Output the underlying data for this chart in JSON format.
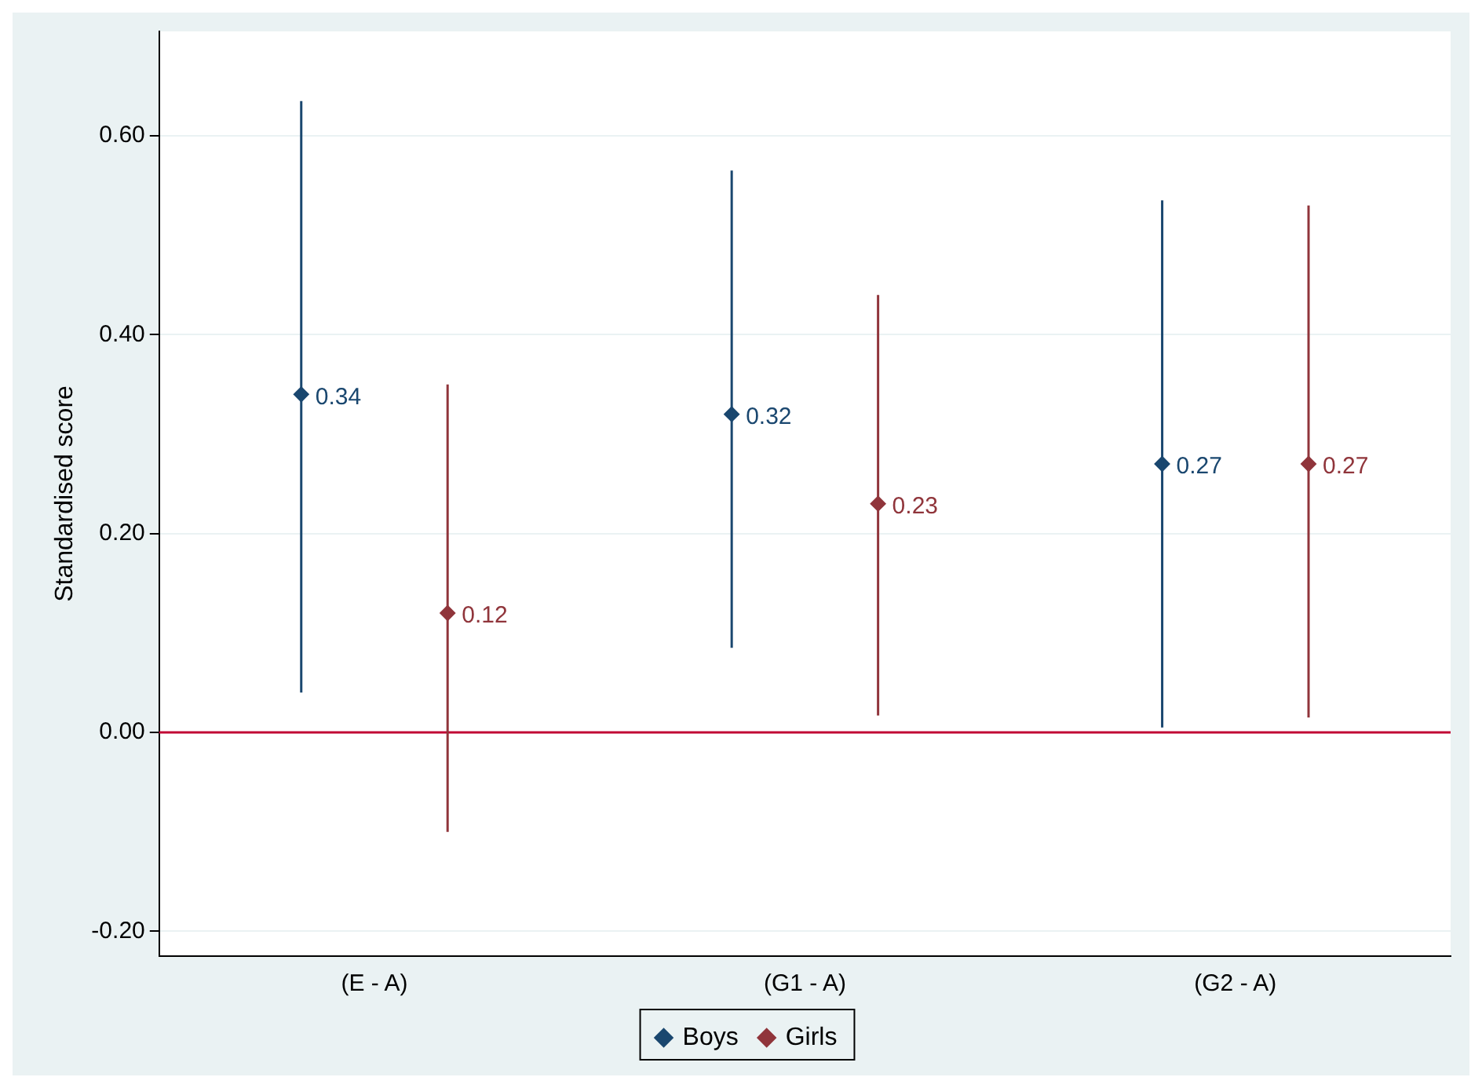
{
  "chart_data": {
    "type": "scatter",
    "ylabel": "Standardised score",
    "categories": [
      "(E - A)",
      "(G1 - A)",
      "(G2 - A)"
    ],
    "series": [
      {
        "name": "Boys",
        "color": "#1a476f",
        "values": [
          0.34,
          0.32,
          0.27
        ],
        "errors": [
          [
            0.04,
            0.635
          ],
          [
            0.085,
            0.565
          ],
          [
            0.005,
            0.535
          ]
        ]
      },
      {
        "name": "Girls",
        "color": "#90353b",
        "values": [
          0.12,
          0.23,
          0.27
        ],
        "errors": [
          [
            -0.1,
            0.35
          ],
          [
            0.017,
            0.44
          ],
          [
            0.015,
            0.53
          ]
        ]
      }
    ],
    "ylim": [
      -0.225,
      0.705
    ],
    "yticks": [
      {
        "value": -0.2,
        "label": "-0.20"
      },
      {
        "value": 0,
        "label": "0.00"
      },
      {
        "value": 0.2,
        "label": "0.20"
      },
      {
        "value": 0.4,
        "label": "0.40"
      },
      {
        "value": 0.6,
        "label": "0.60"
      }
    ],
    "ref_lines": [
      {
        "axis": "y",
        "value": 0,
        "color": "#c10534"
      }
    ],
    "data_labels": true,
    "grid": "y",
    "legend": "bottom",
    "marker": "diamond"
  }
}
